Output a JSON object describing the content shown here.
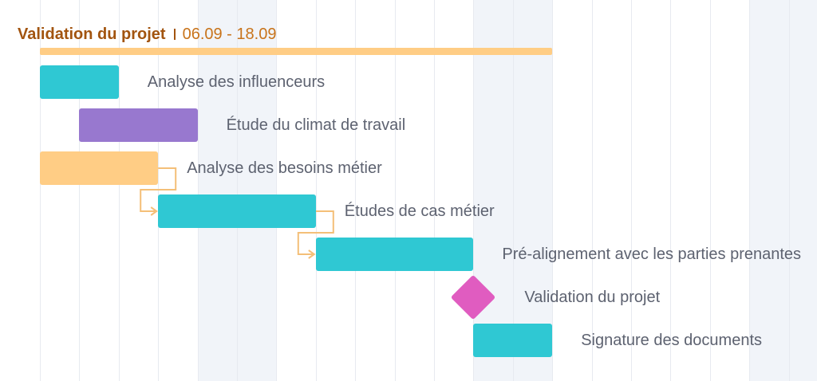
{
  "chart_data": {
    "type": "gantt",
    "title": "Validation du projet",
    "date_range": "06.09 - 18.09",
    "colors": {
      "summary": "#ffcd85",
      "teal": "#2fc8d3",
      "purple": "#9878cf",
      "orange": "#ffcd85",
      "milestone": "#e05cc0",
      "link": "#f4bf78",
      "weekend": "#f1f4f9",
      "gridline": "#e7eaf0"
    },
    "timeline": {
      "total_days": 21,
      "weekend_days": [
        4,
        5,
        11,
        12,
        18,
        19
      ]
    },
    "summary": {
      "start_day": 0,
      "end_day": 13
    },
    "tasks": [
      {
        "name": "Analyse des influenceurs",
        "start_day": 0,
        "end_day": 2,
        "type": "task",
        "color": "teal"
      },
      {
        "name": "Étude du climat de travail",
        "start_day": 1,
        "end_day": 4,
        "type": "task",
        "color": "purple"
      },
      {
        "name": "Analyse des besoins métier",
        "start_day": 0,
        "end_day": 3,
        "type": "task",
        "color": "orange"
      },
      {
        "name": "Études de cas métier",
        "start_day": 3,
        "end_day": 7,
        "type": "task",
        "color": "teal"
      },
      {
        "name": "Pré-alignement avec les parties prenantes",
        "start_day": 7,
        "end_day": 11,
        "type": "task",
        "color": "teal"
      },
      {
        "name": "Validation du projet",
        "start_day": 11,
        "end_day": 11,
        "type": "milestone",
        "color": "milestone"
      },
      {
        "name": "Signature des documents",
        "start_day": 11,
        "end_day": 13,
        "type": "task",
        "color": "teal"
      }
    ],
    "links": [
      {
        "from": 2,
        "to": 3
      },
      {
        "from": 3,
        "to": 4
      }
    ]
  }
}
